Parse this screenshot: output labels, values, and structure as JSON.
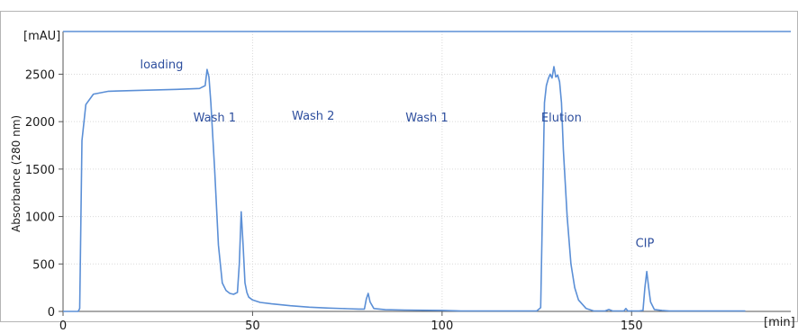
{
  "chart_data": {
    "type": "line",
    "title": "",
    "xlabel": "",
    "ylabel": "Absorbance (280 nm)",
    "x_unit": "[min]",
    "y_unit": "[mAU]",
    "xlim": [
      0,
      192
    ],
    "ylim": [
      0,
      2950
    ],
    "xticks": [
      0,
      50,
      100,
      150
    ],
    "yticks": [
      0,
      500,
      1000,
      1500,
      2000,
      2500
    ],
    "grid": true,
    "legend": "none",
    "line_color": "#5b8fd6",
    "text_color": "#2e4f9e",
    "series": [
      {
        "x": [
          0,
          3,
          4,
          4.4,
          5,
          6,
          8,
          12,
          20,
          30,
          36,
          37.5,
          38,
          38.5,
          39,
          40,
          41,
          42,
          43,
          44,
          45,
          46,
          46.5,
          47,
          47.5,
          48,
          48.5,
          49,
          50,
          52,
          55,
          60,
          65,
          70,
          75,
          78,
          79.5,
          80,
          80.5,
          81,
          82,
          85,
          90,
          100,
          105,
          110,
          115,
          120,
          125,
          126,
          127,
          127.5,
          128,
          128.5,
          129,
          129.5,
          130,
          130.5,
          131,
          131.5,
          132,
          133,
          134,
          135,
          136,
          138,
          140,
          143,
          144,
          145,
          148,
          148.5,
          149,
          150,
          152,
          153,
          153.5,
          154,
          154.5,
          155,
          156,
          158,
          160,
          165,
          170,
          175,
          180
        ],
        "y": [
          0,
          0,
          0,
          30,
          1800,
          2180,
          2290,
          2320,
          2330,
          2340,
          2350,
          2380,
          2550,
          2470,
          2200,
          1500,
          700,
          300,
          220,
          190,
          180,
          200,
          500,
          1050,
          700,
          300,
          200,
          150,
          120,
          95,
          80,
          60,
          45,
          35,
          28,
          25,
          25,
          130,
          190,
          100,
          30,
          18,
          14,
          10,
          5,
          5,
          5,
          5,
          5,
          40,
          2200,
          2380,
          2450,
          2500,
          2460,
          2580,
          2470,
          2490,
          2420,
          2200,
          1700,
          1000,
          500,
          250,
          120,
          30,
          5,
          5,
          20,
          5,
          5,
          30,
          5,
          5,
          5,
          10,
          250,
          420,
          250,
          100,
          20,
          10,
          5,
          5,
          5,
          5,
          5
        ]
      }
    ],
    "annotations": [
      {
        "text": "loading",
        "x": 26,
        "y": 2560
      },
      {
        "text": "Wash 1",
        "x": 40,
        "y": 2000
      },
      {
        "text": "Wash 2",
        "x": 66,
        "y": 2020
      },
      {
        "text": "Wash 1",
        "x": 96,
        "y": 2000
      },
      {
        "text": "Elution",
        "x": 131.5,
        "y": 2000
      },
      {
        "text": "CIP",
        "x": 153.5,
        "y": 680
      }
    ]
  }
}
